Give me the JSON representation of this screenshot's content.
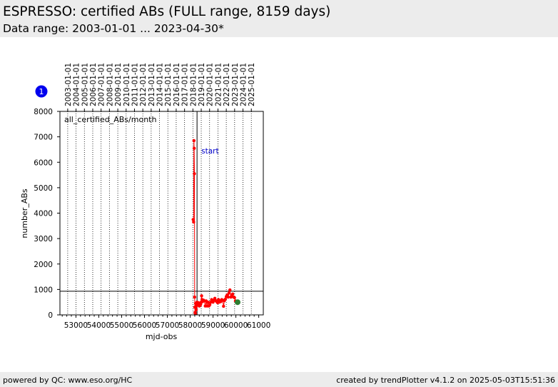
{
  "header": {
    "title": "ESPRESSO: certified ABs (FULL range, 8159 days)",
    "subtitle": "Data range: 2003-01-01 ... 2023-04-30*"
  },
  "footer": {
    "left": "powered by QC: www.eso.org/HC",
    "right": "created by trendPlotter v4.1.2 on 2025-05-03T15:51:36"
  },
  "badge": {
    "label": "1",
    "color": "#0000ee"
  },
  "chart_data": {
    "type": "line",
    "title": "",
    "xlabel": "mjd-obs",
    "ylabel": "number_ABs",
    "xlim": [
      52300,
      61200
    ],
    "ylim": [
      0,
      8000
    ],
    "x_ticks": [
      53000,
      54000,
      55000,
      56000,
      57000,
      58000,
      59000,
      60000,
      61000
    ],
    "y_ticks": [
      0,
      1000,
      2000,
      3000,
      4000,
      5000,
      6000,
      7000,
      8000
    ],
    "top_axis": {
      "labels": [
        "2003-01-01",
        "2004-01-01",
        "2005-01-01",
        "2006-01-01",
        "2007-01-01",
        "2008-01-01",
        "2009-01-01",
        "2010-01-01",
        "2011-01-01",
        "2012-01-01",
        "2013-01-01",
        "2014-01-01",
        "2015-01-01",
        "2016-01-01",
        "2017-01-01",
        "2018-01-01",
        "2019-01-01",
        "2020-01-01",
        "2021-01-01",
        "2022-01-01",
        "2023-01-01",
        "2024-01-01",
        "2025-01-01"
      ],
      "mjd": [
        52640,
        53005,
        53371,
        53736,
        54101,
        54466,
        54832,
        55197,
        55562,
        55927,
        56293,
        56658,
        57023,
        57388,
        57754,
        58119,
        58484,
        58849,
        59215,
        59580,
        59945,
        60310,
        60676
      ]
    },
    "grid": "vertical dotted at year boundaries",
    "series": [
      {
        "name": "all_certified_ABs/month",
        "color": "#ff0000",
        "x": [
          58130,
          58150,
          58165,
          58175,
          58185,
          58195,
          58205,
          58215,
          58225,
          58235,
          58245,
          58260,
          58280,
          58300,
          58320,
          58340,
          58360,
          58380,
          58400,
          58420,
          58440,
          58460,
          58480,
          58500,
          58520,
          58540,
          58580,
          58620,
          58660,
          58700,
          58740,
          58780,
          58820,
          58860,
          58900,
          58940,
          58970,
          59000,
          59040,
          59080,
          59120,
          59160,
          59200,
          59240,
          59270,
          59300,
          59340,
          59380,
          59420,
          59460,
          59500,
          59540,
          59580,
          59620,
          59660,
          59700,
          59740,
          59780,
          59820,
          59860,
          59900,
          59940,
          59980,
          60020,
          60060
        ],
        "y": [
          3750,
          3650,
          6850,
          6550,
          5550,
          700,
          300,
          100,
          50,
          450,
          300,
          200,
          450,
          500,
          380,
          420,
          480,
          400,
          350,
          450,
          380,
          420,
          500,
          750,
          600,
          520,
          580,
          550,
          350,
          550,
          350,
          500,
          350,
          400,
          500,
          600,
          550,
          500,
          580,
          650,
          560,
          520,
          480,
          600,
          500,
          550,
          520,
          600,
          580,
          340,
          560,
          620,
          720,
          780,
          700,
          860,
          980,
          700,
          780,
          820,
          700,
          680,
          550,
          520,
          500
        ]
      }
    ],
    "markers": [
      {
        "name": "latest",
        "x": 60075,
        "y": 500,
        "color": "#2e7d32"
      }
    ],
    "reference_lines": [
      {
        "orientation": "horizontal",
        "y": 930,
        "color": "#000000"
      },
      {
        "orientation": "vertical",
        "x": 58300,
        "color": "#000000",
        "label": "start",
        "label_color": "#0000cc"
      }
    ],
    "legend": "top-left"
  }
}
